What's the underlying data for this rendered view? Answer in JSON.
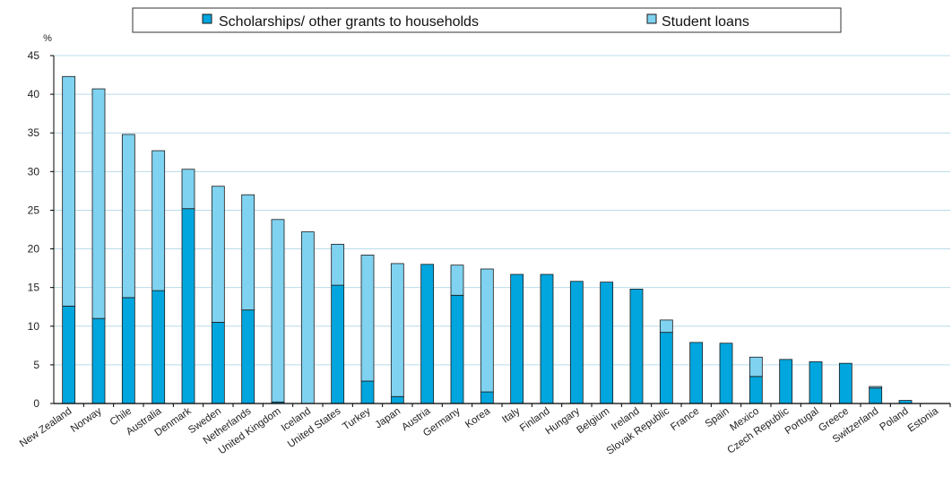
{
  "chart_data": {
    "type": "bar",
    "stacked": true,
    "title": "",
    "xlabel": "",
    "ylabel": "%",
    "ylim": [
      0,
      45
    ],
    "yticks": [
      0,
      5,
      10,
      15,
      20,
      25,
      30,
      35,
      40,
      45
    ],
    "grid": true,
    "legend_position": "top",
    "categories": [
      "New Zealand",
      "Norway",
      "Chile",
      "Australia",
      "Denmark",
      "Sweden",
      "Netherlands",
      "United Kingdom",
      "Iceland",
      "United States",
      "Turkey",
      "Japan",
      "Austria",
      "Germany",
      "Korea",
      "Italy",
      "Finland",
      "Hungary",
      "Belgium",
      "Ireland",
      "Slovak Republic",
      "France",
      "Spain",
      "Mexico",
      "Czech Republic",
      "Portugal",
      "Greece",
      "Switzerland",
      "Poland",
      "Estonia"
    ],
    "series": [
      {
        "name": "Scholarships/ other grants to households",
        "color": "#00a6dd",
        "values": [
          12.6,
          11.0,
          13.7,
          14.6,
          25.2,
          10.5,
          12.1,
          0.2,
          0.0,
          15.3,
          2.9,
          0.9,
          18.0,
          14.0,
          1.5,
          16.7,
          16.7,
          15.8,
          15.7,
          14.8,
          9.2,
          7.9,
          7.8,
          3.5,
          5.7,
          5.4,
          5.2,
          2.0,
          0.4,
          0.0
        ]
      },
      {
        "name": "Student loans",
        "color": "#7fd2f0",
        "values": [
          29.7,
          29.7,
          21.1,
          18.1,
          5.1,
          17.6,
          14.9,
          23.6,
          22.2,
          5.3,
          16.3,
          17.2,
          0.0,
          3.9,
          15.9,
          0.0,
          0.0,
          0.0,
          0.0,
          0.0,
          1.6,
          0.0,
          0.0,
          2.5,
          0.0,
          0.0,
          0.0,
          0.2,
          0.0,
          0.0
        ]
      }
    ]
  },
  "colors": {
    "grid": "#b9dcea",
    "axis": "#000000",
    "bar_outline": "#1a1a1a"
  }
}
